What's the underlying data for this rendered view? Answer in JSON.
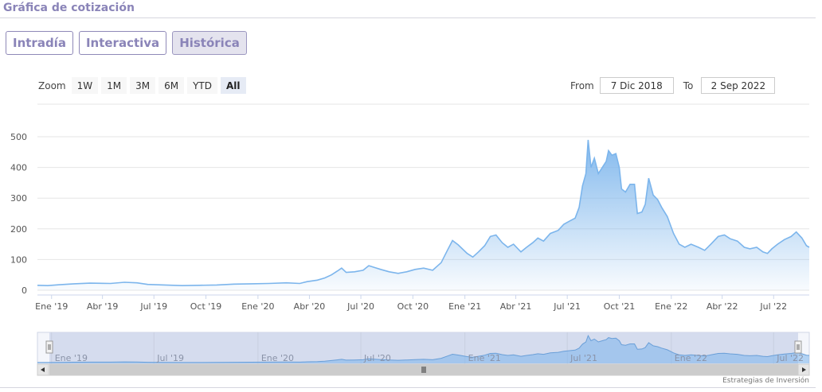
{
  "header": {
    "title": "Gráfica de cotización"
  },
  "tabs": [
    {
      "label": "Intradía",
      "active": false
    },
    {
      "label": "Interactiva",
      "active": false
    },
    {
      "label": "Histórica",
      "active": true
    }
  ],
  "zoom": {
    "label": "Zoom",
    "buttons": [
      "1W",
      "1M",
      "3M",
      "6M",
      "YTD",
      "All"
    ],
    "selected": "All"
  },
  "range": {
    "from_label": "From",
    "from_value": "7 Dic 2018",
    "to_label": "To",
    "to_value": "2 Sep 2022"
  },
  "credits": "Estrategias de Inversión",
  "colors": {
    "line": "#7cb5ec",
    "brand": "#8a84b8",
    "grid": "#e6e6e6"
  },
  "chart_data": {
    "type": "area",
    "title": "",
    "xlabel": "",
    "ylabel": "",
    "ylim": [
      0,
      500
    ],
    "yticks": [
      0,
      100,
      200,
      300,
      400,
      500
    ],
    "xlim": [
      "2018-12-07",
      "2022-09-02"
    ],
    "xticks": [
      {
        "date": "2019-01-01",
        "label": "Ene '19"
      },
      {
        "date": "2019-04-01",
        "label": "Abr '19"
      },
      {
        "date": "2019-07-01",
        "label": "Jul '19"
      },
      {
        "date": "2019-10-01",
        "label": "Oct '19"
      },
      {
        "date": "2020-01-01",
        "label": "Ene '20"
      },
      {
        "date": "2020-04-01",
        "label": "Abr '20"
      },
      {
        "date": "2020-07-01",
        "label": "Jul '20"
      },
      {
        "date": "2020-10-01",
        "label": "Oct '20"
      },
      {
        "date": "2021-01-01",
        "label": "Ene '21"
      },
      {
        "date": "2021-04-01",
        "label": "Abr '21"
      },
      {
        "date": "2021-07-01",
        "label": "Jul '21"
      },
      {
        "date": "2021-10-01",
        "label": "Oct '21"
      },
      {
        "date": "2022-01-01",
        "label": "Ene '22"
      },
      {
        "date": "2022-04-01",
        "label": "Abr '22"
      },
      {
        "date": "2022-07-01",
        "label": "Jul '22"
      }
    ],
    "grid": true,
    "legend": "none",
    "series": [
      {
        "points": [
          [
            "2018-12-07",
            16
          ],
          [
            "2018-12-25",
            15
          ],
          [
            "2019-01-15",
            18
          ],
          [
            "2019-02-10",
            21
          ],
          [
            "2019-03-10",
            23
          ],
          [
            "2019-04-15",
            22
          ],
          [
            "2019-05-10",
            26
          ],
          [
            "2019-06-01",
            24
          ],
          [
            "2019-06-20",
            19
          ],
          [
            "2019-07-20",
            17
          ],
          [
            "2019-08-20",
            15
          ],
          [
            "2019-09-20",
            16
          ],
          [
            "2019-10-20",
            17
          ],
          [
            "2019-11-20",
            20
          ],
          [
            "2019-12-20",
            21
          ],
          [
            "2020-01-20",
            22
          ],
          [
            "2020-02-20",
            24
          ],
          [
            "2020-03-15",
            22
          ],
          [
            "2020-03-28",
            28
          ],
          [
            "2020-04-15",
            33
          ],
          [
            "2020-04-28",
            40
          ],
          [
            "2020-05-10",
            50
          ],
          [
            "2020-05-20",
            62
          ],
          [
            "2020-05-28",
            72
          ],
          [
            "2020-06-05",
            58
          ],
          [
            "2020-06-20",
            60
          ],
          [
            "2020-07-05",
            65
          ],
          [
            "2020-07-15",
            80
          ],
          [
            "2020-07-25",
            74
          ],
          [
            "2020-08-05",
            68
          ],
          [
            "2020-08-20",
            60
          ],
          [
            "2020-09-05",
            55
          ],
          [
            "2020-09-20",
            60
          ],
          [
            "2020-10-05",
            68
          ],
          [
            "2020-10-20",
            72
          ],
          [
            "2020-11-05",
            65
          ],
          [
            "2020-11-20",
            90
          ],
          [
            "2020-12-01",
            130
          ],
          [
            "2020-12-10",
            162
          ],
          [
            "2020-12-20",
            148
          ],
          [
            "2021-01-05",
            120
          ],
          [
            "2021-01-15",
            108
          ],
          [
            "2021-01-25",
            125
          ],
          [
            "2021-02-05",
            145
          ],
          [
            "2021-02-15",
            175
          ],
          [
            "2021-02-25",
            180
          ],
          [
            "2021-03-08",
            155
          ],
          [
            "2021-03-18",
            140
          ],
          [
            "2021-03-28",
            150
          ],
          [
            "2021-04-10",
            125
          ],
          [
            "2021-04-20",
            140
          ],
          [
            "2021-05-01",
            155
          ],
          [
            "2021-05-10",
            170
          ],
          [
            "2021-05-20",
            160
          ],
          [
            "2021-06-01",
            185
          ],
          [
            "2021-06-15",
            195
          ],
          [
            "2021-06-25",
            215
          ],
          [
            "2021-07-05",
            225
          ],
          [
            "2021-07-15",
            235
          ],
          [
            "2021-07-22",
            270
          ],
          [
            "2021-07-28",
            340
          ],
          [
            "2021-08-03",
            380
          ],
          [
            "2021-08-07",
            490
          ],
          [
            "2021-08-12",
            400
          ],
          [
            "2021-08-18",
            430
          ],
          [
            "2021-08-25",
            380
          ],
          [
            "2021-09-01",
            400
          ],
          [
            "2021-09-08",
            420
          ],
          [
            "2021-09-12",
            455
          ],
          [
            "2021-09-18",
            440
          ],
          [
            "2021-09-25",
            445
          ],
          [
            "2021-10-01",
            400
          ],
          [
            "2021-10-05",
            330
          ],
          [
            "2021-10-12",
            320
          ],
          [
            "2021-10-20",
            345
          ],
          [
            "2021-10-28",
            345
          ],
          [
            "2021-11-02",
            250
          ],
          [
            "2021-11-10",
            255
          ],
          [
            "2021-11-16",
            280
          ],
          [
            "2021-11-22",
            365
          ],
          [
            "2021-11-30",
            310
          ],
          [
            "2021-12-08",
            295
          ],
          [
            "2021-12-15",
            270
          ],
          [
            "2021-12-25",
            240
          ],
          [
            "2022-01-05",
            185
          ],
          [
            "2022-01-15",
            150
          ],
          [
            "2022-01-25",
            140
          ],
          [
            "2022-02-05",
            150
          ],
          [
            "2022-02-18",
            140
          ],
          [
            "2022-03-01",
            130
          ],
          [
            "2022-03-12",
            150
          ],
          [
            "2022-03-25",
            175
          ],
          [
            "2022-04-05",
            180
          ],
          [
            "2022-04-15",
            168
          ],
          [
            "2022-04-28",
            160
          ],
          [
            "2022-05-10",
            140
          ],
          [
            "2022-05-20",
            135
          ],
          [
            "2022-06-01",
            140
          ],
          [
            "2022-06-12",
            125
          ],
          [
            "2022-06-20",
            120
          ],
          [
            "2022-06-28",
            135
          ],
          [
            "2022-07-08",
            150
          ],
          [
            "2022-07-20",
            165
          ],
          [
            "2022-08-01",
            175
          ],
          [
            "2022-08-10",
            190
          ],
          [
            "2022-08-20",
            170
          ],
          [
            "2022-08-28",
            145
          ],
          [
            "2022-09-02",
            140
          ]
        ]
      }
    ]
  },
  "navigator": {
    "labels": [
      "Ene '19",
      "Jul '19",
      "Ene '20",
      "Jul '20",
      "Ene '21",
      "Jul '21",
      "Ene '22",
      "Jul '22"
    ]
  }
}
